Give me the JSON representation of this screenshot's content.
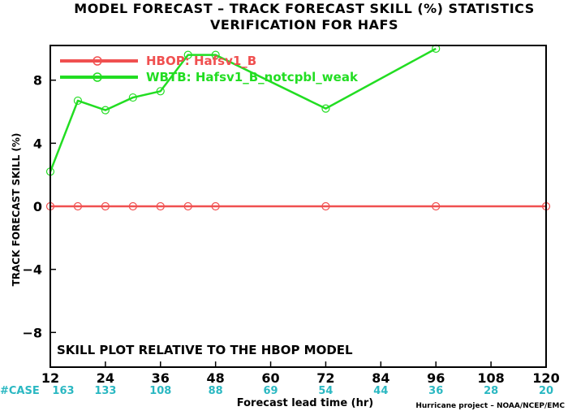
{
  "chart_data": {
    "type": "line",
    "title": "MODEL FORECAST – TRACK FORECAST SKILL (%) STATISTICS",
    "subtitle": "VERIFICATION FOR HAFS",
    "xlabel": "Forecast lead time (hr)",
    "ylabel": "TRACK FORECAST SKILL (%)",
    "xlim": [
      12,
      120
    ],
    "ylim": [
      -10.2,
      10.2
    ],
    "x_ticks": [
      "12",
      "24",
      "36",
      "48",
      "60",
      "72",
      "84",
      "96",
      "108",
      "120"
    ],
    "y_ticks": [
      "8",
      "4",
      "0",
      "−4",
      "−8"
    ],
    "annotation": "SKILL PLOT RELATIVE TO THE HBOP MODEL",
    "case_label": "#CASE",
    "case_counts": [
      "163",
      "133",
      "108",
      "88",
      "69",
      "54",
      "44",
      "36",
      "28",
      "20"
    ],
    "credit": "Hurricane project – NOAA/NCEP/EMC",
    "legend_position": "top-left",
    "grid": false,
    "series": [
      {
        "name": "HBOP: Hafsv1_B",
        "color": "#f05050",
        "x": [
          12,
          18,
          24,
          30,
          36,
          42,
          48,
          72,
          96,
          120
        ],
        "y": [
          0,
          0,
          0,
          0,
          0,
          0,
          0,
          0,
          0,
          0
        ]
      },
      {
        "name": "WBTB: Hafsv1_B_notcpbl_weak",
        "color": "#22dd22",
        "x": [
          12,
          18,
          24,
          30,
          36,
          42,
          48,
          72,
          96
        ],
        "y": [
          2.2,
          6.7,
          6.1,
          6.9,
          7.3,
          9.6,
          9.6,
          6.2,
          10.0
        ]
      }
    ]
  }
}
